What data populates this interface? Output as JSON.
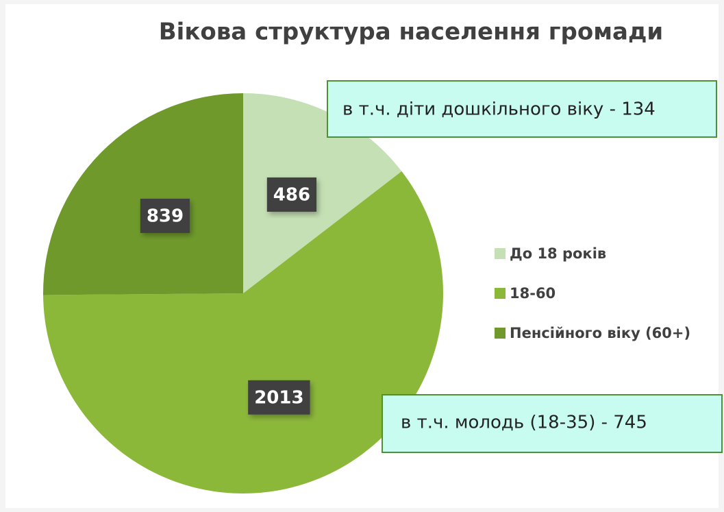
{
  "chart_data": {
    "type": "pie",
    "title": "Вікова структура населення громади",
    "categories": [
      "До 18 років",
      "18-60",
      "Пенсійного віку (60+)"
    ],
    "values": [
      486,
      2013,
      839
    ],
    "colors": [
      "#c5e0b4",
      "#8cb83a",
      "#6f9a2b"
    ],
    "legend": "right",
    "annotations": [
      "в т.ч. діти дошкільного віку - 134",
      "в т.ч. молодь (18-35) - 745"
    ]
  }
}
